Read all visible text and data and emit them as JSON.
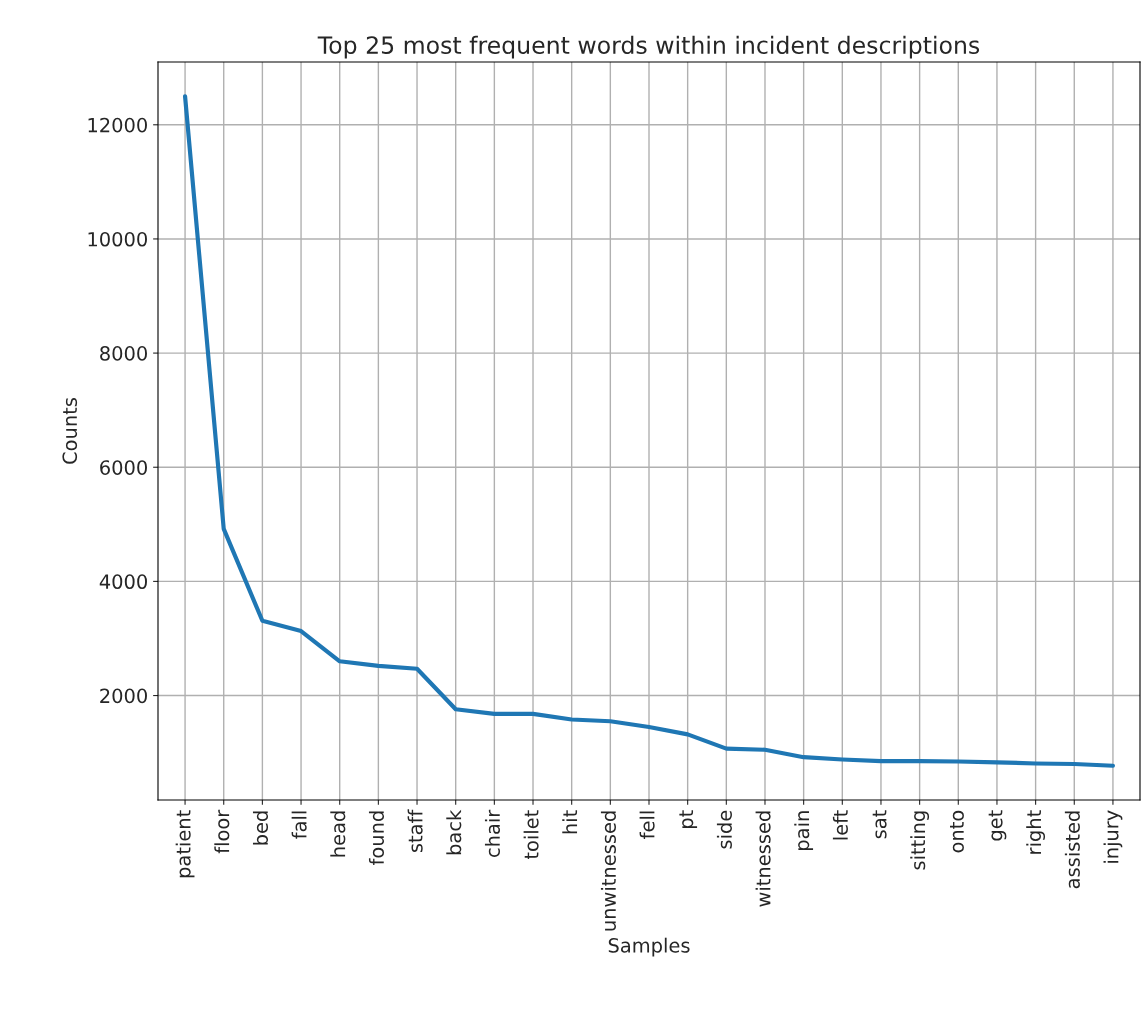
{
  "chart_data": {
    "type": "line",
    "title": "Top 25 most frequent words within incident descriptions",
    "xlabel": "Samples",
    "ylabel": "Counts",
    "categories": [
      "patient",
      "floor",
      "bed",
      "fall",
      "head",
      "found",
      "staff",
      "back",
      "chair",
      "toilet",
      "hit",
      "unwitnessed",
      "fell",
      "pt",
      "side",
      "witnessed",
      "pain",
      "left",
      "sat",
      "sitting",
      "onto",
      "get",
      "right",
      "assisted",
      "injury"
    ],
    "series": [
      {
        "color": "#1f77b4",
        "values": [
          12500,
          4920,
          3310,
          3130,
          2600,
          2520,
          2470,
          1760,
          1680,
          1680,
          1580,
          1550,
          1450,
          1320,
          1070,
          1050,
          920,
          880,
          850,
          850,
          845,
          830,
          810,
          800,
          770
        ]
      }
    ],
    "ylim": [
      170,
      13100
    ],
    "yticks": [
      2000,
      4000,
      6000,
      8000,
      10000,
      12000
    ],
    "grid": true,
    "marker": "none",
    "line_style": "solid"
  }
}
